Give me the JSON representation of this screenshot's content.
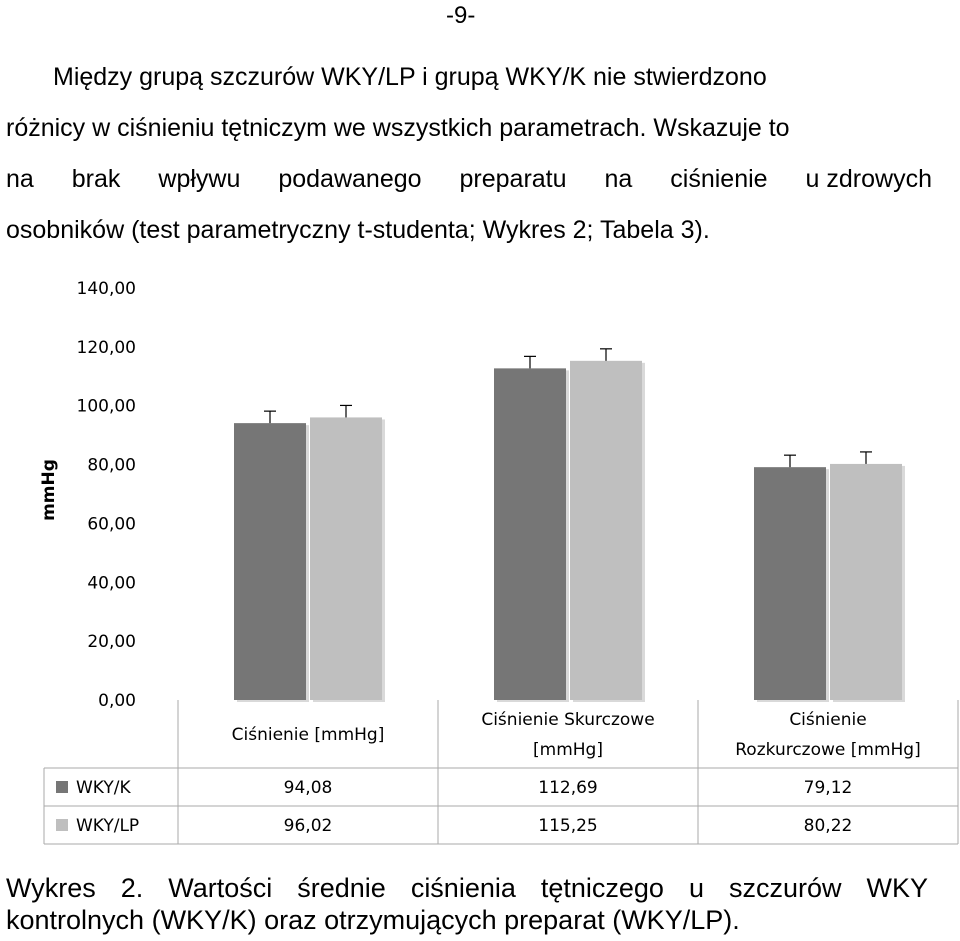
{
  "page_number": "-9-",
  "paragraph": {
    "lines": [
      "Między grupą szczurów WKY/LP i grupą WKY/K nie stwierdzono",
      "różnicy w ciśnieniu tętniczym we wszystkich parametrach. Wskazuje to",
      [
        "na",
        "brak",
        "wpływu",
        "podawanego",
        "preparatu",
        "na",
        "ciśnienie",
        "u zdrowych"
      ],
      "osobników (test parametryczny t-studenta; Wykres 2; Tabela 3)."
    ]
  },
  "caption": {
    "lines": [
      [
        "Wykres",
        "2.",
        "Wartości",
        "średnie",
        "ciśnienia",
        "tętniczego",
        "u",
        "szczurów",
        "WKY"
      ],
      "kontrolnych (WKY/K) oraz otrzymujących preparat (WKY/LP)."
    ]
  },
  "chart_data": {
    "type": "bar",
    "title": "",
    "ylabel": "mmHg",
    "xlabel": "",
    "ylim": [
      0,
      140
    ],
    "yticks": [
      "0,00",
      "20,00",
      "40,00",
      "60,00",
      "80,00",
      "100,00",
      "120,00",
      "140,00"
    ],
    "categories": [
      "Ciśnienie [mmHg]",
      "Ciśnienie Skurczowe [mmHg]",
      "Ciśnienie Rozkurczowe [mmHg]"
    ],
    "category_label_lines": [
      [
        "Ciśnienie [mmHg]"
      ],
      [
        "Ciśnienie Skurczowe",
        "[mmHg]"
      ],
      [
        "Ciśnienie",
        "Rozkurczowe [mmHg]"
      ]
    ],
    "series": [
      {
        "name": "WKY/K",
        "values": [
          94.08,
          112.69,
          79.12
        ],
        "labels": [
          "94,08",
          "112,69",
          "79,12"
        ],
        "color": "#767676"
      },
      {
        "name": "WKY/LP",
        "values": [
          96.02,
          115.25,
          80.22
        ],
        "labels": [
          "96,02",
          "115,25",
          "80,22"
        ],
        "color": "#bfbfbf"
      }
    ],
    "error_bars": true,
    "legend": "data-table-below",
    "grid": false
  }
}
